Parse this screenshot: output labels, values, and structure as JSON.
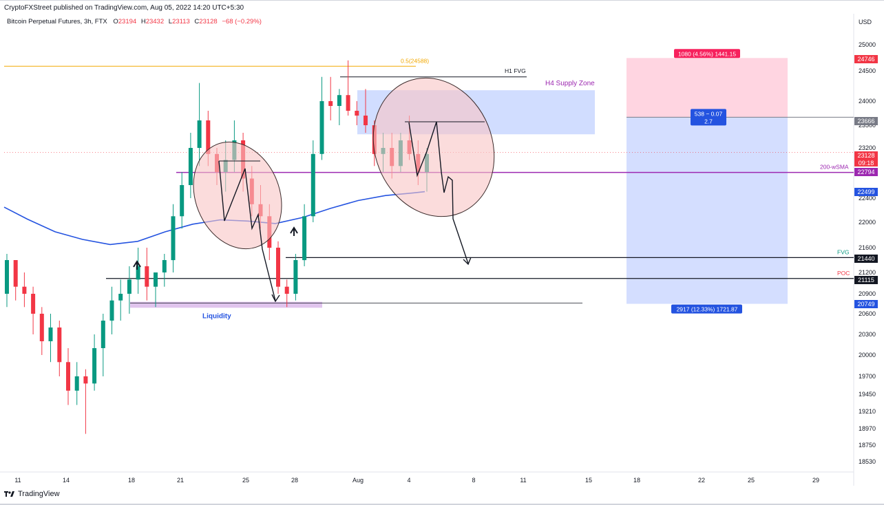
{
  "header": {
    "published": "CryptoFXStreet published on TradingView.com, Aug 05, 2022 14:20 UTC+5:30",
    "symbol": "Bitcoin Perpetual Futures, 3h, FTX",
    "o_label": "O",
    "o_value": "23194",
    "h_label": "H",
    "h_value": "23432",
    "l_label": "L",
    "l_value": "23113",
    "c_label": "C",
    "c_value": "23128",
    "change": "−68 (−0.29%)"
  },
  "footer": {
    "brand": "TradingView"
  },
  "colors": {
    "up": "#089981",
    "down": "#f23645",
    "sma": "#2453e0",
    "sma200w": "#9c27b0",
    "fib": "#f2a800",
    "supply": "#b3c7ff",
    "liquidity": "#d8b5e8",
    "target": "#ffb3c8",
    "stop": "#b8c8ff",
    "grid": "#f0f3fa"
  },
  "chart_data": {
    "type": "candlestick",
    "title": "Bitcoin Perpetual Futures, 3h, FTX",
    "currency": "USD",
    "x_ticks": [
      "11",
      "14",
      "18",
      "21",
      "25",
      "28",
      "Aug",
      "4",
      "8",
      "11",
      "15",
      "18",
      "22",
      "25",
      "29"
    ],
    "y_ticks": [
      25000,
      24500,
      24000,
      23500,
      23200,
      22800,
      22400,
      22000,
      21600,
      21200,
      20900,
      20600,
      20300,
      20000,
      19700,
      19450,
      19210,
      18970,
      18750,
      18530
    ],
    "price_tags": [
      {
        "value": "24746",
        "color": "#f23645"
      },
      {
        "value": "23666",
        "color": "#787b86"
      },
      {
        "value": "23128",
        "sub": "09:18",
        "color": "#f23645"
      },
      {
        "value": "22794",
        "color": "#9c27b0"
      },
      {
        "value": "22499",
        "color": "#2453e0"
      },
      {
        "value": "21440",
        "color": "#131722"
      },
      {
        "value": "21115",
        "color": "#131722"
      },
      {
        "value": "20749",
        "color": "#2453e0"
      }
    ],
    "levels": [
      {
        "name": "0.5(24588)",
        "price": 24588,
        "kind": "fib"
      },
      {
        "name": "H1 FVG",
        "price": 24400,
        "kind": "black"
      },
      {
        "name": "200-wSMA",
        "price": 22794,
        "kind": "purple"
      },
      {
        "name": "FVG",
        "price": 21440,
        "kind": "black"
      },
      {
        "name": "POC",
        "price": 21115,
        "kind": "black"
      },
      {
        "name": "",
        "price": 20760,
        "kind": "thin"
      }
    ],
    "level_colors": {
      "FVG": "#089981",
      "POC": "#f23645"
    },
    "zones": [
      {
        "name": "H4 Supply Zone",
        "top": 24180,
        "bottom": 23380
      },
      {
        "name": "Liquidity",
        "top": 20780,
        "bottom": 20690
      }
    ],
    "position": {
      "entry": 23666,
      "target_label": "1080 (4.56%) 1441.15",
      "stop_label": "2917 (12.33%) 1721.87",
      "ratio_label_1": "538 − 0.07",
      "ratio_label_2": "2.7",
      "top": 24746,
      "bottom": 20749
    },
    "candles": [
      [
        20.9,
        21.5,
        20.7,
        21.4
      ],
      [
        21.4,
        21.4,
        20.8,
        21.0
      ],
      [
        21.0,
        21.2,
        20.7,
        20.9
      ],
      [
        20.9,
        21.0,
        20.3,
        20.6
      ],
      [
        20.6,
        20.7,
        20.0,
        20.2
      ],
      [
        20.2,
        20.6,
        19.9,
        20.4
      ],
      [
        20.4,
        20.5,
        19.7,
        19.9
      ],
      [
        19.9,
        20.1,
        19.3,
        19.5
      ],
      [
        19.5,
        19.9,
        19.3,
        19.7
      ],
      [
        19.7,
        19.8,
        18.9,
        19.6
      ],
      [
        19.6,
        20.3,
        19.5,
        20.1
      ],
      [
        20.1,
        20.6,
        19.7,
        20.5
      ],
      [
        20.5,
        21.0,
        20.3,
        20.8
      ],
      [
        20.8,
        21.1,
        20.5,
        20.9
      ],
      [
        20.9,
        21.3,
        20.6,
        21.1
      ],
      [
        21.1,
        21.6,
        20.9,
        21.3
      ],
      [
        21.3,
        21.6,
        20.8,
        21.0
      ],
      [
        21.0,
        21.2,
        20.7,
        21.2
      ],
      [
        21.2,
        21.5,
        21.0,
        21.4
      ],
      [
        21.4,
        22.3,
        21.2,
        22.1
      ],
      [
        22.1,
        22.8,
        21.9,
        22.6
      ],
      [
        22.6,
        23.4,
        22.4,
        23.2
      ],
      [
        23.2,
        24.3,
        22.9,
        23.6
      ],
      [
        23.6,
        23.8,
        22.9,
        23.1
      ],
      [
        23.1,
        23.2,
        22.6,
        22.8
      ],
      [
        22.8,
        23.3,
        22.5,
        23.0
      ],
      [
        23.0,
        23.6,
        22.8,
        23.3
      ],
      [
        23.3,
        23.4,
        22.5,
        22.7
      ],
      [
        22.7,
        22.9,
        22.1,
        22.3
      ],
      [
        22.3,
        22.6,
        21.9,
        22.1
      ],
      [
        22.1,
        22.3,
        21.4,
        21.6
      ],
      [
        21.6,
        21.7,
        20.9,
        21.0
      ],
      [
        21.0,
        21.1,
        20.7,
        20.9
      ],
      [
        20.9,
        21.5,
        20.8,
        21.4
      ],
      [
        21.4,
        22.3,
        21.3,
        22.1
      ],
      [
        22.1,
        23.3,
        22.0,
        23.1
      ],
      [
        23.1,
        24.4,
        23.0,
        24.0
      ],
      [
        24.0,
        24.4,
        23.6,
        23.9
      ],
      [
        23.9,
        24.2,
        23.5,
        24.1
      ],
      [
        24.1,
        24.7,
        23.7,
        23.8
      ],
      [
        23.8,
        24.0,
        23.5,
        23.7
      ],
      [
        23.7,
        24.2,
        23.4,
        23.5
      ],
      [
        23.5,
        23.6,
        22.9,
        23.1
      ],
      [
        23.1,
        23.4,
        22.8,
        23.2
      ],
      [
        23.2,
        23.4,
        22.7,
        22.9
      ],
      [
        22.9,
        23.4,
        22.8,
        23.3
      ],
      [
        23.3,
        23.7,
        23.0,
        23.1
      ],
      [
        23.1,
        23.3,
        22.6,
        22.8
      ],
      [
        22.8,
        23.2,
        22.5,
        23.1
      ]
    ]
  }
}
